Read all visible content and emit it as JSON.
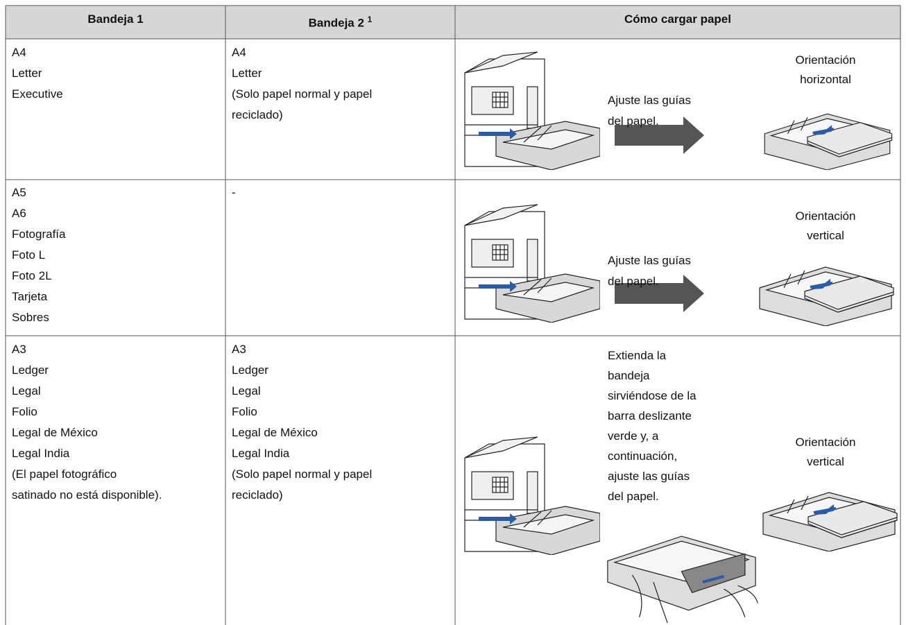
{
  "table": {
    "header": [
      "Bandeja 1",
      "Bandeja 2",
      "Cómo cargar papel"
    ],
    "header_note": "1",
    "rows": [
      {
        "tray1": [
          "A4",
          "Letter",
          "Executive"
        ],
        "tray2": [
          "A4",
          "Letter",
          "(Solo papel normal y papel",
          "reciclado)"
        ],
        "instruction": [
          "Ajuste las guías",
          "del papel."
        ],
        "orientation": [
          "Orientación",
          "horizontal"
        ]
      },
      {
        "tray1": [
          "A5",
          "A6",
          "Fotografía",
          "Foto L",
          "Foto 2L",
          "Tarjeta",
          "Sobres"
        ],
        "tray2": [
          "-"
        ],
        "instruction": [
          "Ajuste las guías",
          "del papel."
        ],
        "orientation": [
          "Orientación",
          "vertical"
        ]
      },
      {
        "tray1": [
          "A3",
          "Ledger",
          "Legal",
          "Folio",
          "Legal de México",
          "Legal India",
          "(El papel fotográfico",
          "satinado no está disponible)."
        ],
        "tray2": [
          "A3",
          "Ledger",
          "Legal",
          "Folio",
          "Legal de México",
          "Legal India",
          "(Solo papel normal y papel",
          "reciclado)"
        ],
        "instruction": [
          "Extienda la",
          "bandeja",
          "sirviéndose de la",
          "barra deslizante",
          "verde y, a",
          "continuación,",
          "ajuste las guías",
          "del papel."
        ],
        "orientation": [
          "Orientación",
          "vertical"
        ]
      }
    ]
  }
}
